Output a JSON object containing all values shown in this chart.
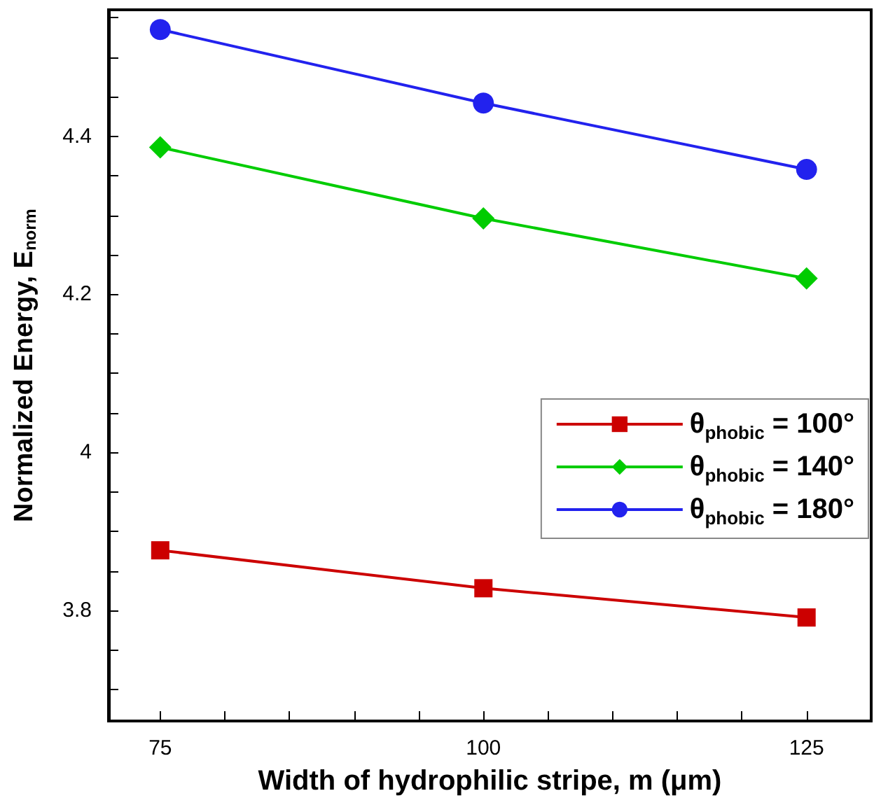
{
  "chart_data": {
    "type": "line",
    "xlabel": "Width of hydrophilic stripe, m (μm)",
    "ylabel": "Normalized Energy, E$_{norm}$",
    "x": [
      75,
      100,
      125
    ],
    "series": [
      {
        "name": "θ$_{phobic}$ = 100°",
        "color": "#cc0000",
        "marker": "square",
        "values": [
          3.876,
          3.828,
          3.791
        ]
      },
      {
        "name": "θ$_{phobic}$ = 140°",
        "color": "#00cc00",
        "marker": "diamond",
        "values": [
          4.386,
          4.296,
          4.22
        ]
      },
      {
        "name": "θ$_{phobic}$ = 180°",
        "color": "#2222ee",
        "marker": "circle",
        "values": [
          4.535,
          4.442,
          4.358
        ]
      }
    ],
    "xlim": [
      71,
      130
    ],
    "xticks": [
      75,
      {
        "value": 80,
        "label": null
      },
      {
        "value": 85,
        "label": null
      },
      {
        "value": 90,
        "label": null
      },
      {
        "value": 95,
        "label": null
      },
      100,
      {
        "value": 105,
        "label": null
      },
      {
        "value": 110,
        "label": null
      },
      {
        "value": 115,
        "label": null
      },
      {
        "value": 120,
        "label": null
      },
      125
    ],
    "ylim": [
      3.66,
      4.56
    ],
    "yticks": [
      {
        "value": 3.7,
        "label": null
      },
      {
        "value": 3.75,
        "label": null
      },
      3.8,
      {
        "value": 3.85,
        "label": null
      },
      {
        "value": 3.9,
        "label": null
      },
      {
        "value": 3.95,
        "label": null
      },
      4,
      {
        "value": 4.05,
        "label": null
      },
      {
        "value": 4.1,
        "label": null
      },
      {
        "value": 4.15,
        "label": null
      },
      4.2,
      {
        "value": 4.25,
        "label": null
      },
      {
        "value": 4.3,
        "label": null
      },
      {
        "value": 4.35,
        "label": null
      },
      4.4,
      {
        "value": 4.45,
        "label": null
      },
      {
        "value": 4.5,
        "label": null
      },
      {
        "value": 4.55,
        "label": null
      }
    ],
    "grid": false,
    "legend": "right",
    "line_style": "solid"
  }
}
